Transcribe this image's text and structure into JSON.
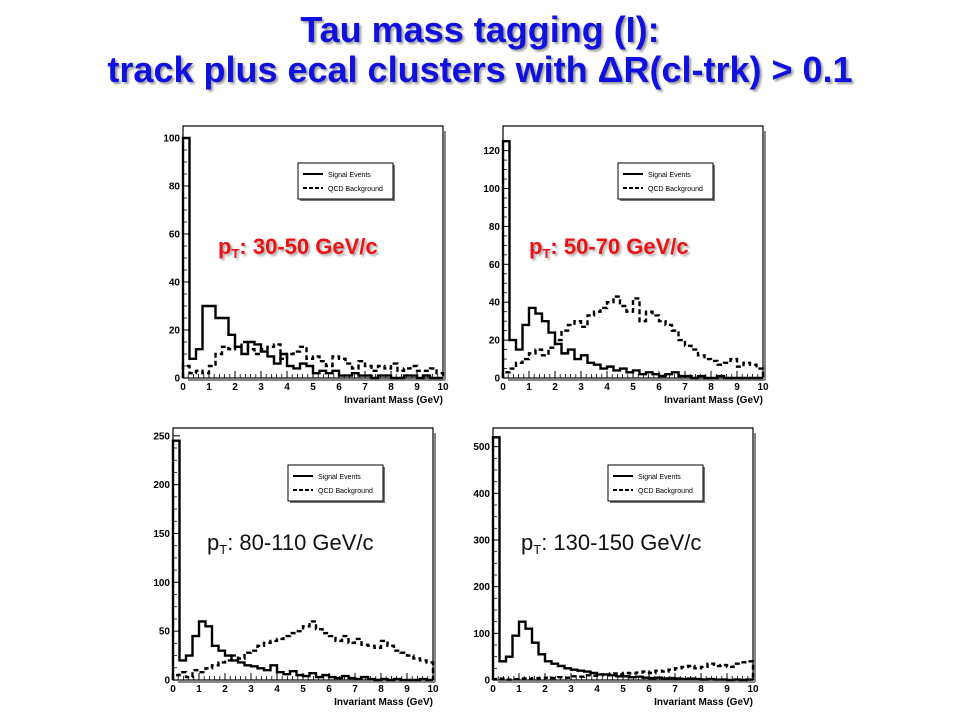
{
  "slide": {
    "title_line1": "Tau mass tagging (I):",
    "title_line2": "track plus ecal clusters with ΔR(cl-trk) > 0.1"
  },
  "labels": [
    {
      "sym": "p",
      "sub": "T",
      "text": ": 30-50 GeV/c"
    },
    {
      "sym": "p",
      "sub": "T",
      "text": ": 50-70 GeV/c"
    },
    {
      "sym": "p",
      "sub": "T",
      "text": ": 80-110 GeV/c"
    },
    {
      "sym": "p",
      "sub": "T",
      "text": ": 130-150 GeV/c"
    }
  ],
  "chart_data": [
    {
      "type": "line",
      "xlabel": "Invariant Mass (GeV)",
      "xlim": [
        0,
        10
      ],
      "ylim": [
        0,
        105
      ],
      "xticks": [
        0,
        1,
        2,
        3,
        4,
        5,
        6,
        7,
        8,
        9,
        10
      ],
      "yticks": [
        0,
        20,
        40,
        60,
        80,
        100
      ],
      "legend": {
        "position": "top-right",
        "entries": [
          "Signal Events",
          "QCD Background"
        ]
      },
      "bin_width": 0.25,
      "series": [
        {
          "name": "Signal Events",
          "style": "solid",
          "values": [
            100,
            8,
            12,
            30,
            30,
            25,
            25,
            18,
            13,
            10,
            15,
            14,
            11,
            9,
            6,
            10,
            5,
            4,
            6,
            5,
            2,
            3,
            2,
            3,
            1,
            1,
            2,
            1,
            1,
            0,
            1,
            1,
            0,
            0,
            1,
            1,
            0,
            1,
            0,
            0
          ]
        },
        {
          "name": "QCD Background",
          "style": "dashed",
          "values": [
            5,
            2,
            3,
            2,
            5,
            10,
            13,
            12,
            13,
            15,
            12,
            10,
            12,
            13,
            14,
            8,
            10,
            11,
            13,
            8,
            9,
            7,
            5,
            9,
            8,
            6,
            4,
            7,
            5,
            3,
            5,
            4,
            6,
            3,
            4,
            5,
            3,
            3,
            4,
            2
          ]
        }
      ]
    },
    {
      "type": "line",
      "xlabel": "Invariant Mass (GeV)",
      "xlim": [
        0,
        10
      ],
      "ylim": [
        0,
        133
      ],
      "xticks": [
        0,
        1,
        2,
        3,
        4,
        5,
        6,
        7,
        8,
        9,
        10
      ],
      "yticks": [
        0,
        20,
        40,
        60,
        80,
        100,
        120
      ],
      "legend": {
        "position": "top-right",
        "entries": [
          "Signal Events",
          "QCD Background"
        ]
      },
      "bin_width": 0.25,
      "series": [
        {
          "name": "Signal Events",
          "style": "solid",
          "values": [
            125,
            20,
            15,
            28,
            37,
            34,
            30,
            24,
            18,
            13,
            15,
            10,
            12,
            8,
            7,
            5,
            6,
            4,
            5,
            3,
            4,
            2,
            3,
            2,
            1,
            2,
            3,
            1,
            1,
            0,
            1,
            0,
            0,
            1,
            0,
            0,
            0,
            0,
            0,
            0
          ]
        },
        {
          "name": "QCD Background",
          "style": "dashed",
          "values": [
            3,
            5,
            8,
            10,
            13,
            15,
            12,
            16,
            20,
            25,
            28,
            30,
            27,
            33,
            35,
            37,
            40,
            43,
            38,
            35,
            42,
            30,
            35,
            33,
            30,
            28,
            25,
            20,
            17,
            15,
            12,
            10,
            9,
            7,
            8,
            10,
            6,
            8,
            7,
            5
          ]
        }
      ]
    },
    {
      "type": "line",
      "xlabel": "Invariant Mass (GeV)",
      "xlim": [
        0,
        10
      ],
      "ylim": [
        0,
        258
      ],
      "xticks": [
        0,
        1,
        2,
        3,
        4,
        5,
        6,
        7,
        8,
        9,
        10
      ],
      "yticks": [
        0,
        50,
        100,
        150,
        200,
        250
      ],
      "legend": {
        "position": "top-right",
        "entries": [
          "Signal Events",
          "QCD Background"
        ]
      },
      "bin_width": 0.25,
      "series": [
        {
          "name": "Signal Events",
          "style": "solid",
          "values": [
            245,
            20,
            25,
            45,
            60,
            55,
            35,
            30,
            25,
            20,
            18,
            15,
            14,
            12,
            10,
            15,
            8,
            6,
            9,
            5,
            4,
            7,
            3,
            5,
            3,
            2,
            4,
            2,
            1,
            3,
            1,
            0,
            1,
            0,
            1,
            0,
            0,
            0,
            1,
            0
          ]
        },
        {
          "name": "QCD Background",
          "style": "dashed",
          "values": [
            5,
            8,
            3,
            10,
            8,
            12,
            15,
            18,
            20,
            25,
            22,
            28,
            30,
            35,
            38,
            40,
            42,
            45,
            48,
            50,
            55,
            60,
            52,
            48,
            45,
            40,
            45,
            38,
            42,
            36,
            35,
            33,
            40,
            35,
            30,
            28,
            25,
            22,
            20,
            18
          ]
        }
      ]
    },
    {
      "type": "line",
      "xlabel": "Invariant Mass (GeV)",
      "xlim": [
        0,
        10
      ],
      "ylim": [
        0,
        540
      ],
      "xticks": [
        0,
        1,
        2,
        3,
        4,
        5,
        6,
        7,
        8,
        9,
        10
      ],
      "yticks": [
        0,
        100,
        200,
        300,
        400,
        500
      ],
      "legend": {
        "position": "top-right",
        "entries": [
          "Signal Events",
          "QCD Background"
        ]
      },
      "bin_width": 0.25,
      "series": [
        {
          "name": "Signal Events",
          "style": "solid",
          "values": [
            520,
            40,
            50,
            95,
            125,
            110,
            80,
            55,
            40,
            35,
            30,
            25,
            22,
            20,
            18,
            15,
            12,
            12,
            10,
            8,
            8,
            6,
            7,
            5,
            4,
            5,
            3,
            4,
            3,
            2,
            3,
            2,
            1,
            2,
            1,
            1,
            0,
            1,
            0,
            1
          ]
        },
        {
          "name": "QCD Background",
          "style": "dashed",
          "values": [
            2,
            3,
            1,
            2,
            3,
            2,
            4,
            3,
            5,
            4,
            6,
            5,
            8,
            7,
            10,
            9,
            12,
            10,
            14,
            12,
            15,
            14,
            16,
            18,
            15,
            20,
            18,
            22,
            25,
            28,
            30,
            25,
            28,
            35,
            30,
            32,
            28,
            35,
            38,
            40
          ]
        }
      ]
    }
  ]
}
